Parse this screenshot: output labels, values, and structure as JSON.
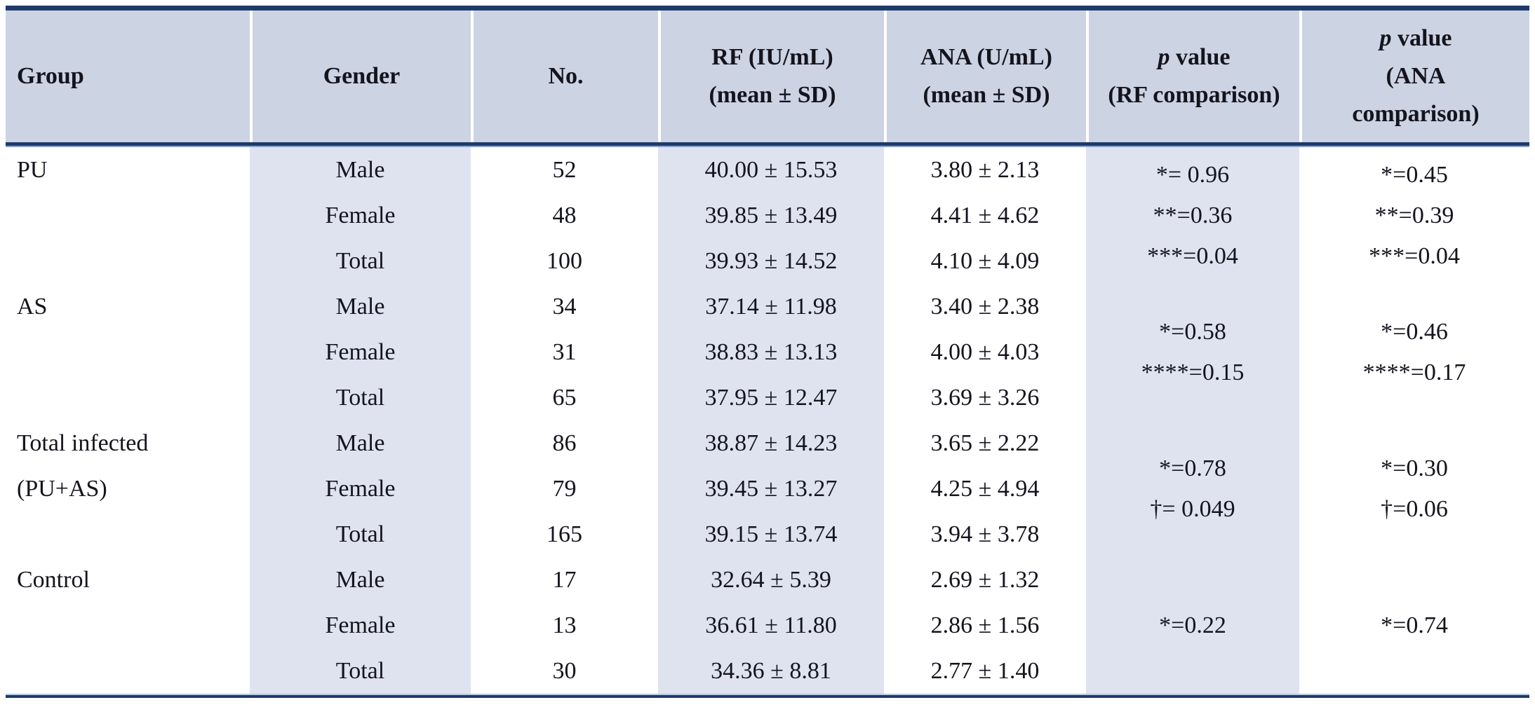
{
  "table": {
    "header": {
      "group": "Group",
      "gender": "Gender",
      "no": "No.",
      "rf": [
        "RF (IU/mL)",
        "(mean ± SD)"
      ],
      "ana": [
        "ANA (U/mL)",
        "(mean ± SD)"
      ],
      "p_rf": {
        "p": "p",
        "rest": " value",
        "line2": "(RF comparison)"
      },
      "p_ana": {
        "p": "p",
        "rest": " value",
        "line2": "(ANA",
        "line3": "comparison)"
      }
    },
    "groups": [
      {
        "label_lines": [
          "PU"
        ],
        "rows": [
          {
            "gender": "Male",
            "no": "52",
            "rf": "40.00 ± 15.53",
            "ana": "3.80 ± 2.13"
          },
          {
            "gender": "Female",
            "no": "48",
            "rf": "39.85 ± 13.49",
            "ana": "4.41 ± 4.62"
          },
          {
            "gender": "Total",
            "no": "100",
            "rf": "39.93 ± 14.52",
            "ana": "4.10 ± 4.09"
          }
        ],
        "p_rf_lines": [
          "*= 0.96",
          "**=0.36",
          "***=0.04"
        ],
        "p_ana_lines": [
          "*=0.45",
          "**=0.39",
          "***=0.04"
        ]
      },
      {
        "label_lines": [
          "AS"
        ],
        "rows": [
          {
            "gender": "Male",
            "no": "34",
            "rf": "37.14 ± 11.98",
            "ana": "3.40 ± 2.38"
          },
          {
            "gender": "Female",
            "no": "31",
            "rf": "38.83 ± 13.13",
            "ana": "4.00 ± 4.03"
          },
          {
            "gender": "Total",
            "no": "65",
            "rf": "37.95 ± 12.47",
            "ana": "3.69 ± 3.26"
          }
        ],
        "p_rf_lines": [
          "*=0.58",
          "****=0.15"
        ],
        "p_ana_lines": [
          "*=0.46",
          "****=0.17"
        ]
      },
      {
        "label_lines": [
          "Total infected",
          "(PU+AS)"
        ],
        "rows": [
          {
            "gender": "Male",
            "no": "86",
            "rf": "38.87 ± 14.23",
            "ana": "3.65 ± 2.22"
          },
          {
            "gender": "Female",
            "no": "79",
            "rf": "39.45 ± 13.27",
            "ana": "4.25 ± 4.94"
          },
          {
            "gender": "Total",
            "no": "165",
            "rf": "39.15 ± 13.74",
            "ana": "3.94 ± 3.78"
          }
        ],
        "p_rf_lines": [
          "*=0.78",
          "†= 0.049"
        ],
        "p_ana_lines": [
          "*=0.30",
          "†=0.06"
        ]
      },
      {
        "label_lines": [
          "Control"
        ],
        "rows": [
          {
            "gender": "Male",
            "no": "17",
            "rf": "32.64 ± 5.39",
            "ana": "2.69 ± 1.32"
          },
          {
            "gender": "Female",
            "no": "13",
            "rf": "36.61 ± 11.80",
            "ana": "2.86 ± 1.56"
          },
          {
            "gender": "Total",
            "no": "30",
            "rf": "34.36 ± 8.81",
            "ana": "2.77 ± 1.40"
          }
        ],
        "p_rf_lines": [
          "*=0.22"
        ],
        "p_ana_lines": [
          "*=0.74"
        ]
      }
    ],
    "colors": {
      "header_bg": "#ccd3e3",
      "shaded_column_bg": "#dfe3f0",
      "rule_navy": "#1f3a6b",
      "text": "#14141d"
    }
  }
}
